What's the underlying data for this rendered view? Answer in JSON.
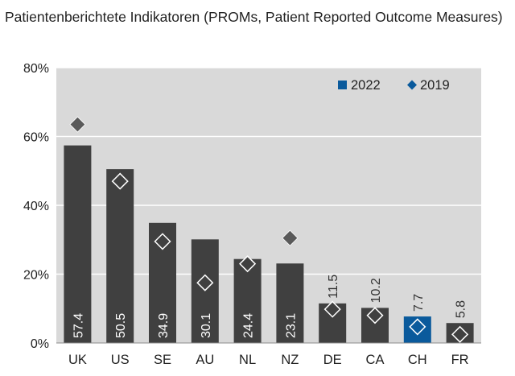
{
  "chart_data": {
    "type": "bar",
    "title": "Patientenberichtete Indikatoren (PROMs, Patient Reported Outcome Measures)",
    "categories": [
      "UK",
      "US",
      "SE",
      "AU",
      "NL",
      "NZ",
      "DE",
      "CA",
      "CH",
      "FR"
    ],
    "series": [
      {
        "name": "2022",
        "kind": "bar",
        "values": [
          57.4,
          50.5,
          34.9,
          30.1,
          24.4,
          23.1,
          11.5,
          10.2,
          7.7,
          5.8
        ]
      },
      {
        "name": "2019",
        "kind": "marker",
        "values": [
          63.5,
          47.0,
          29.5,
          17.5,
          23.0,
          30.5,
          9.8,
          8.0,
          4.7,
          2.5
        ]
      }
    ],
    "value_labels": [
      "57.4",
      "50.5",
      "34.9",
      "30.1",
      "24.4",
      "23.1",
      "11.5",
      "10.2",
      "7.7",
      "5.8"
    ],
    "highlight_category": "CH",
    "ylim": [
      0,
      80
    ],
    "yticks": [
      0,
      20,
      40,
      60,
      80
    ],
    "ytick_labels": [
      "0%",
      "20%",
      "40%",
      "60%",
      "80%"
    ],
    "xlabel": "",
    "ylabel": "",
    "legend": {
      "position": "top-right",
      "items": [
        "2022",
        "2019"
      ]
    },
    "grid": true,
    "colors": {
      "bar": "#404040",
      "highlight": "#0a5a9c",
      "marker_2019": "#5a5a5a",
      "marker_on_bar": "#404040",
      "marker_on_bar_stroke": "#ffffff",
      "legend_2022": "#0a5a9c",
      "legend_2019": "#0a5a9c",
      "plot_background": "#d9d9d9",
      "gridline": "#ffffff",
      "label_inside": "#ffffff",
      "label_outside": "#333333"
    }
  }
}
